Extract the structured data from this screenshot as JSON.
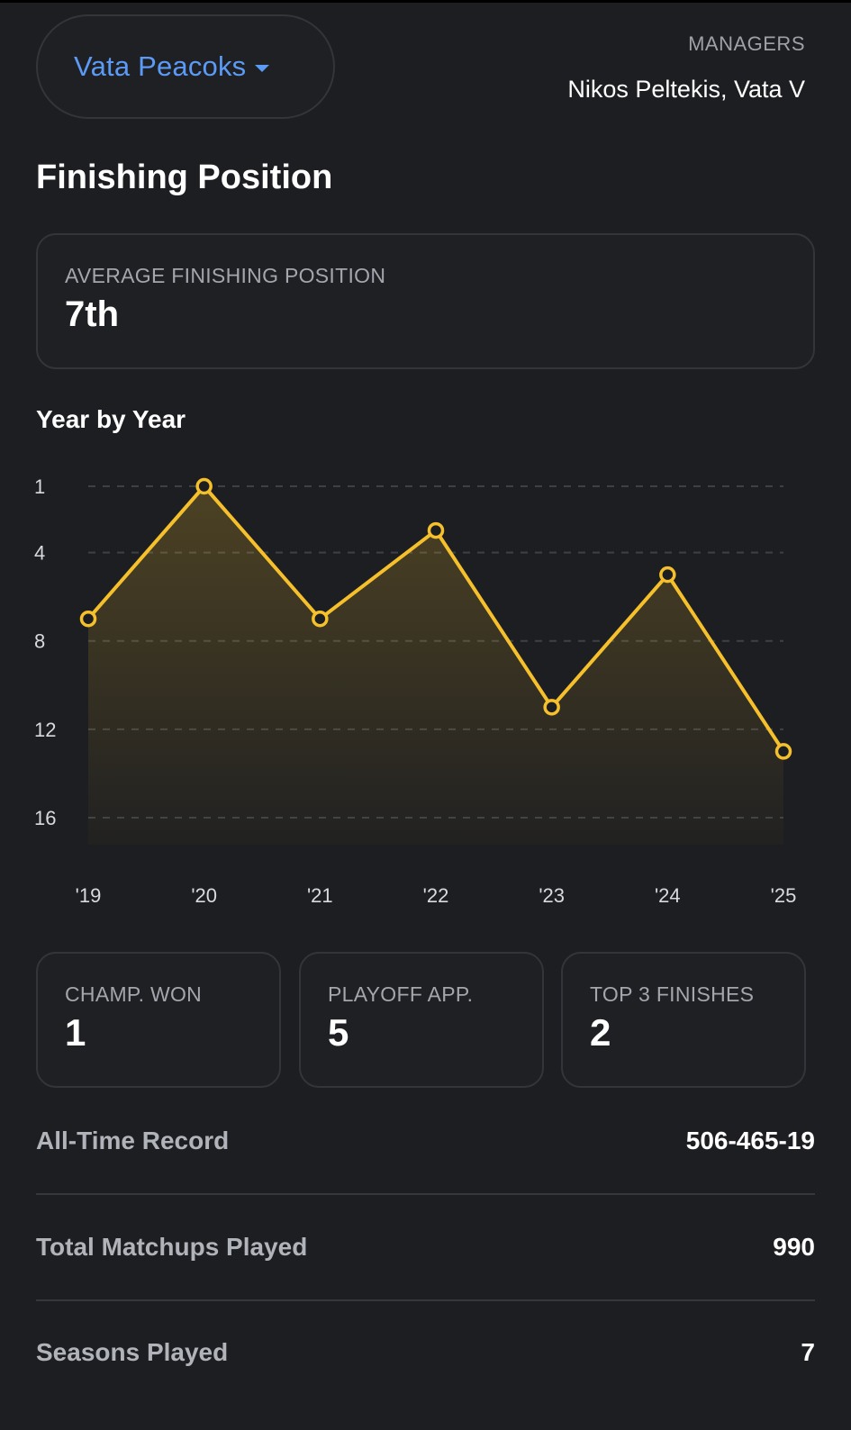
{
  "header": {
    "team_name": "Vata Peacoks",
    "managers_label": "MANAGERS",
    "managers_value": "Nikos Peltekis, Vata V"
  },
  "section_title": "Finishing Position",
  "average": {
    "label": "AVERAGE FINISHING POSITION",
    "value": "7th"
  },
  "year_by_year_title": "Year by Year",
  "colors": {
    "accent": "#f5c02c",
    "link": "#5b9bf5",
    "background": "#1d1e21"
  },
  "chart_data": {
    "type": "area",
    "x": [
      "'19",
      "'20",
      "'21",
      "'22",
      "'23",
      "'24",
      "'25"
    ],
    "series": [
      {
        "values": [
          7,
          1,
          7,
          3,
          11,
          5,
          13
        ]
      }
    ],
    "y_ticks": [
      1,
      4,
      8,
      12,
      16
    ],
    "ylim": [
      1,
      16
    ],
    "y_inverted": true,
    "grid": true
  },
  "stats": [
    {
      "label": "CHAMP. WON",
      "value": "1"
    },
    {
      "label": "PLAYOFF APP.",
      "value": "5"
    },
    {
      "label": "TOP 3 FINISHES",
      "value": "2"
    }
  ],
  "records": [
    {
      "label": "All-Time Record",
      "value": "506-465-19"
    },
    {
      "label": "Total Matchups Played",
      "value": "990"
    },
    {
      "label": "Seasons Played",
      "value": "7"
    }
  ]
}
